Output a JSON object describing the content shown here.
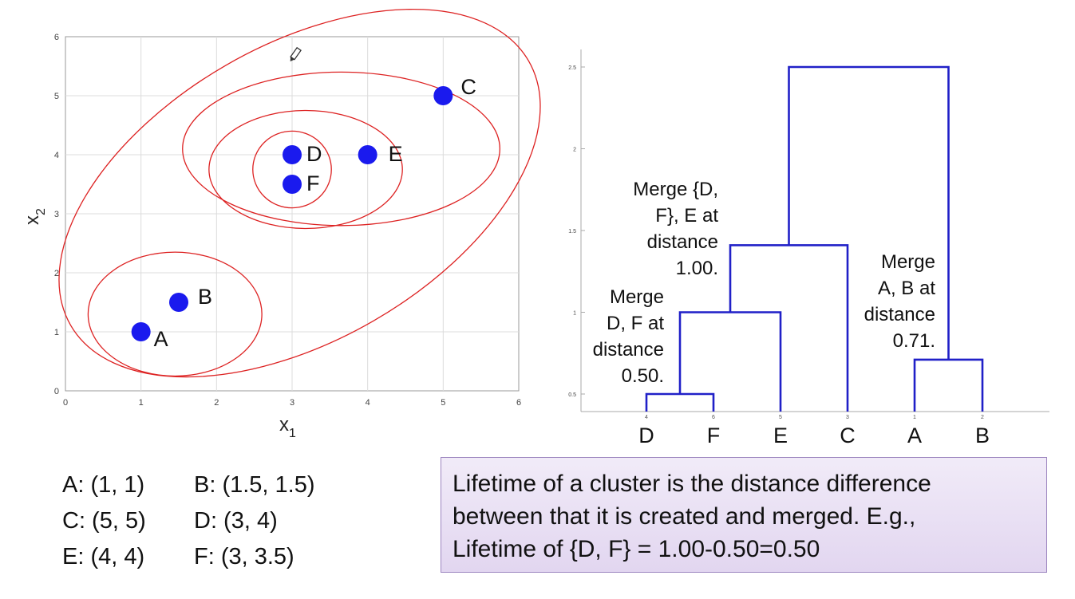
{
  "scatter": {
    "xlabel": "x",
    "xlabel_sub": "1",
    "ylabel": "x",
    "ylabel_sub": "2",
    "x_ticks": [
      "0",
      "1",
      "2",
      "3",
      "4",
      "5",
      "6"
    ],
    "y_ticks": [
      "0",
      "1",
      "2",
      "3",
      "4",
      "5",
      "6"
    ]
  },
  "dendrogram": {
    "y_ticks": [
      "0.5",
      "1",
      "1.5",
      "2",
      "2.5"
    ],
    "leaf_labels": [
      "D",
      "F",
      "E",
      "C",
      "A",
      "B"
    ],
    "leaf_indices": [
      "4",
      "6",
      "5",
      "3",
      "1",
      "2"
    ]
  },
  "annotations": {
    "df": [
      "Merge",
      "D, F at",
      "distance",
      "0.50."
    ],
    "dfe": [
      "Merge {D,",
      "F}, E at",
      "distance",
      "1.00."
    ],
    "ab": [
      "Merge",
      "A, B at",
      "distance",
      "0.71."
    ]
  },
  "coordinates": [
    [
      "A: (1, 1)",
      "B: (1.5, 1.5)"
    ],
    [
      "C: (5, 5)",
      "D: (3, 4)"
    ],
    [
      "E: (4, 4)",
      "F: (3, 3.5)"
    ]
  ],
  "info_box": {
    "line1": "Lifetime of a cluster is the distance difference",
    "line2": "between that it is created and merged. E.g.,",
    "line3": "Lifetime of {D, F} = 1.00-0.50=0.50"
  },
  "colors": {
    "point": "#1a1aee",
    "ellipse": "#dd2222",
    "dendro": "#2020c8",
    "info_bg": "#e9e0f4",
    "info_border": "#9c85bf"
  },
  "chart_data": [
    {
      "type": "scatter",
      "xlim": [
        0,
        6
      ],
      "ylim": [
        0,
        6
      ],
      "grid": true,
      "points": [
        {
          "label": "A",
          "x": 1,
          "y": 1
        },
        {
          "label": "B",
          "x": 1.5,
          "y": 1.5
        },
        {
          "label": "C",
          "x": 5,
          "y": 5
        },
        {
          "label": "D",
          "x": 3,
          "y": 4
        },
        {
          "label": "E",
          "x": 4,
          "y": 4
        },
        {
          "label": "F",
          "x": 3,
          "y": 3.5
        }
      ],
      "clusters": [
        [
          "D",
          "F"
        ],
        [
          "D",
          "F",
          "E"
        ],
        [
          "D",
          "F",
          "E",
          "C"
        ],
        [
          "A",
          "B"
        ],
        [
          "A",
          "B",
          "C",
          "D",
          "E",
          "F"
        ]
      ]
    },
    {
      "type": "dendrogram",
      "ylim": [
        0.5,
        2.5
      ],
      "leaves": [
        "D",
        "F",
        "E",
        "C",
        "A",
        "B"
      ],
      "merges": [
        {
          "members": [
            "D",
            "F"
          ],
          "height": 0.5
        },
        {
          "members": [
            "A",
            "B"
          ],
          "height": 0.71
        },
        {
          "members": [
            "D",
            "F",
            "E"
          ],
          "height": 1.0
        },
        {
          "members": [
            "D",
            "F",
            "E",
            "C"
          ],
          "height": 1.41
        },
        {
          "members": [
            "D",
            "F",
            "E",
            "C",
            "A",
            "B"
          ],
          "height": 2.5
        }
      ]
    }
  ]
}
